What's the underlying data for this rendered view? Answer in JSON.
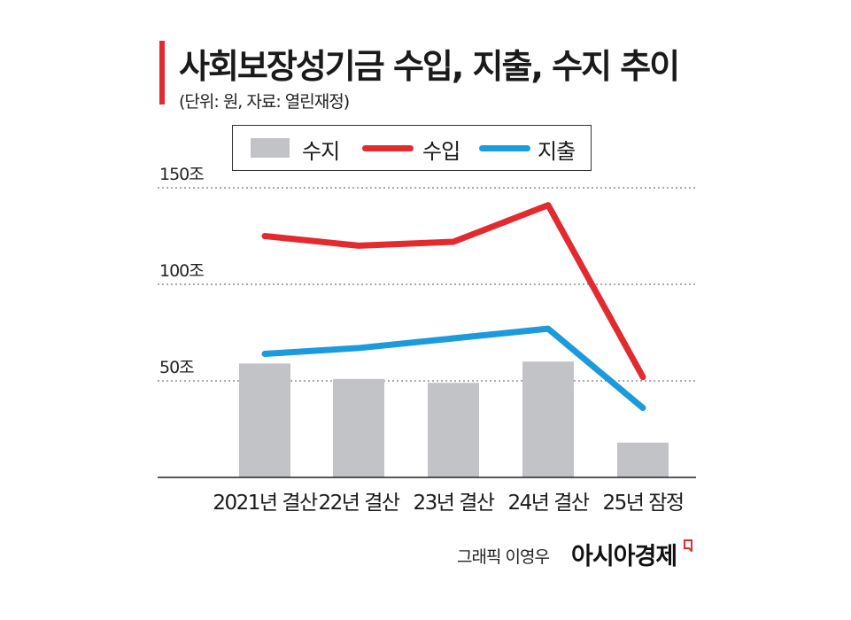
{
  "title": "사회보장성기금 수입, 지출, 수지 추이",
  "subtitle": "(단위: 원, 자료: 열린재정)",
  "legend": {
    "items": [
      {
        "label": "수지",
        "color": "#c2c3c6"
      },
      {
        "label": "수입",
        "color": "#e32a2f"
      },
      {
        "label": "지출",
        "color": "#1b9bdc"
      }
    ]
  },
  "chart_data": {
    "type": "bar",
    "categories": [
      "2021년 결산",
      "22년 결산",
      "23년 결산",
      "24년 결산",
      "25년 잠정"
    ],
    "y_tick_labels": [
      "50조",
      "100조",
      "150조"
    ],
    "y_ticks": [
      50,
      100,
      150
    ],
    "ylim": [
      0,
      150
    ],
    "grid": true,
    "legend_position": "top",
    "series": [
      {
        "name": "수지",
        "type": "bar",
        "color": "#c2c3c6",
        "values": [
          59,
          51,
          49,
          60,
          18
        ]
      },
      {
        "name": "수입",
        "type": "line",
        "color": "#e32a2f",
        "values": [
          125,
          120,
          122,
          141,
          52
        ]
      },
      {
        "name": "지출",
        "type": "line",
        "color": "#1b9bdc",
        "values": [
          64,
          67,
          72,
          77,
          36
        ]
      }
    ]
  },
  "footer": {
    "credit": "그래픽 이영우",
    "brand": "아시아경제",
    "brand_color": "#e32a2f"
  }
}
